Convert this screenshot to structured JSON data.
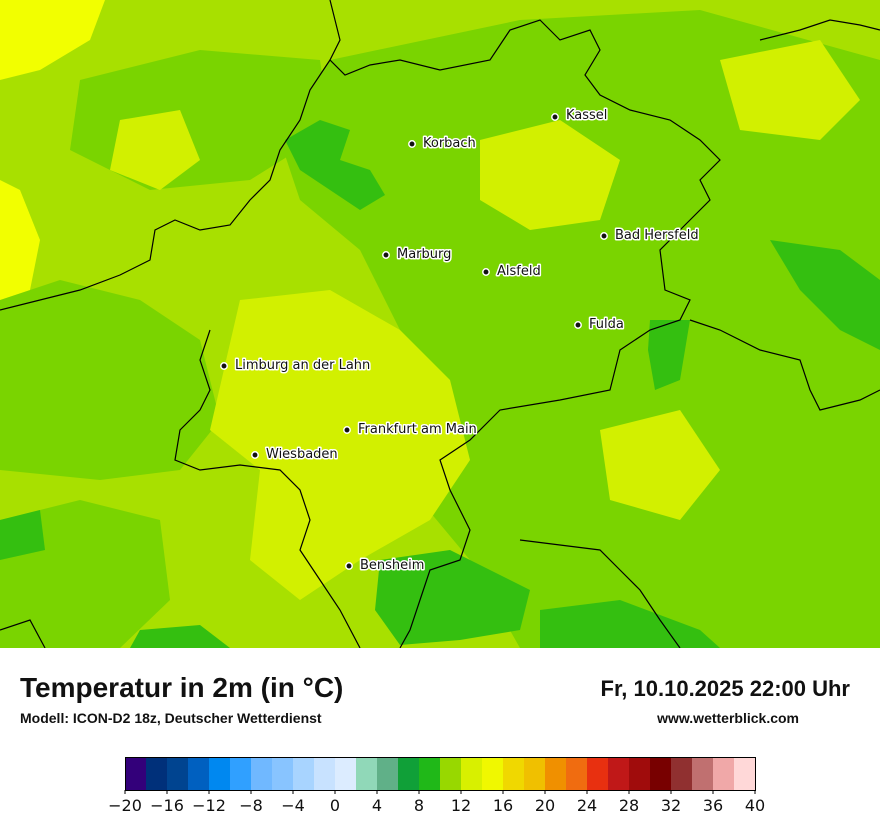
{
  "header": {
    "title": "Temperatur in 2m (in °C)",
    "model": "Modell: ICON-D2 18z, Deutscher Wetterdienst",
    "datetime": "Fr, 10.10.2025 22:00 Uhr",
    "website": "www.wetterblick.com"
  },
  "colors": {
    "yellow": "#f2ff00",
    "yellow_green": "#d2f000",
    "light_green": "#a8e000",
    "green": "#7ad400",
    "mid_green": "#34bf10",
    "dark_green": "#15a82d",
    "border": "#000000"
  },
  "cities": [
    {
      "name": "Kassel"
    },
    {
      "name": "Korbach"
    },
    {
      "name": "Bad Hersfeld"
    },
    {
      "name": "Marburg"
    },
    {
      "name": "Alsfeld"
    },
    {
      "name": "Fulda"
    },
    {
      "name": "Limburg an der Lahn"
    },
    {
      "name": "Frankfurt am Main"
    },
    {
      "name": "Wiesbaden"
    },
    {
      "name": "Bensheim"
    }
  ],
  "legend": {
    "ticks": [
      "−20",
      "−16",
      "−12",
      "−8",
      "−4",
      "0",
      "4",
      "8",
      "12",
      "16",
      "20",
      "24",
      "28",
      "32",
      "36",
      "40"
    ],
    "colors": [
      "#33007a",
      "#00307a",
      "#004490",
      "#0060c0",
      "#0088f0",
      "#30a0ff",
      "#70b8ff",
      "#88c4ff",
      "#a8d4ff",
      "#c8e2ff",
      "#dcecff",
      "#90d8b8",
      "#60b088",
      "#10a038",
      "#20b818",
      "#98d800",
      "#d8f000",
      "#f0f800",
      "#f0d800",
      "#f0c000",
      "#f09000",
      "#f06c10",
      "#e83010",
      "#c01818",
      "#a00c0c",
      "#780000",
      "#903030",
      "#c07070",
      "#f0a8a8",
      "#ffd8d8"
    ]
  }
}
